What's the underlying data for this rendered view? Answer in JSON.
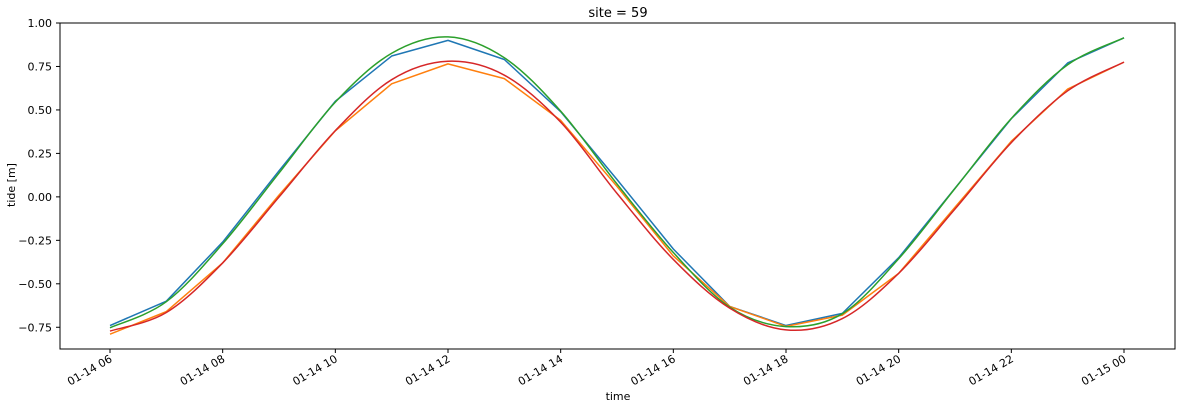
{
  "chart_data": {
    "type": "line",
    "title": "site = 59",
    "xlabel": "time",
    "ylabel": "tide [m]",
    "x": [
      "01-14 06",
      "01-14 07",
      "01-14 08",
      "01-14 09",
      "01-14 10",
      "01-14 11",
      "01-14 12",
      "01-14 13",
      "01-14 14",
      "01-14 15",
      "01-14 16",
      "01-14 17",
      "01-14 18",
      "01-14 19",
      "01-14 20",
      "01-14 21",
      "01-14 22",
      "01-14 23",
      "01-15 00"
    ],
    "x_ticks": [
      "01-14 06",
      "01-14 08",
      "01-14 10",
      "01-14 12",
      "01-14 14",
      "01-14 16",
      "01-14 18",
      "01-14 20",
      "01-14 22",
      "01-15 00"
    ],
    "y_ticks": [
      "1.00",
      "0.75",
      "0.50",
      "0.25",
      "0.00",
      "−0.25",
      "−0.50",
      "−0.75"
    ],
    "ylim": [
      -0.875,
      1.0
    ],
    "grid": false,
    "series": [
      {
        "color": "#1f77b4",
        "values": [
          -0.74,
          -0.6,
          -0.26,
          0.15,
          0.55,
          0.81,
          0.9,
          0.79,
          0.49,
          0.1,
          -0.3,
          -0.63,
          -0.74,
          -0.67,
          -0.35,
          0.05,
          0.45,
          0.77,
          0.915
        ]
      },
      {
        "color": "#ff7f0e",
        "values": [
          -0.79,
          -0.66,
          -0.38,
          0.01,
          0.38,
          0.65,
          0.765,
          0.68,
          0.44,
          0.06,
          -0.34,
          -0.63,
          -0.745,
          -0.68,
          -0.44,
          -0.06,
          0.32,
          0.62,
          0.775
        ]
      },
      {
        "color": "#2ca02c",
        "smooth": true,
        "values": [
          -0.753,
          -0.603,
          -0.27,
          0.137,
          0.545,
          0.826,
          0.92,
          0.8,
          0.493,
          0.074,
          -0.32,
          -0.634,
          -0.746,
          -0.672,
          -0.356,
          0.048,
          0.451,
          0.76,
          0.915
        ]
      },
      {
        "color": "#d62728",
        "smooth": true,
        "values": [
          -0.772,
          -0.665,
          -0.38,
          -0.001,
          0.381,
          0.674,
          0.78,
          0.7,
          0.43,
          0.02,
          -0.36,
          -0.64,
          -0.765,
          -0.7,
          -0.44,
          -0.07,
          0.312,
          0.61,
          0.775
        ]
      }
    ]
  }
}
